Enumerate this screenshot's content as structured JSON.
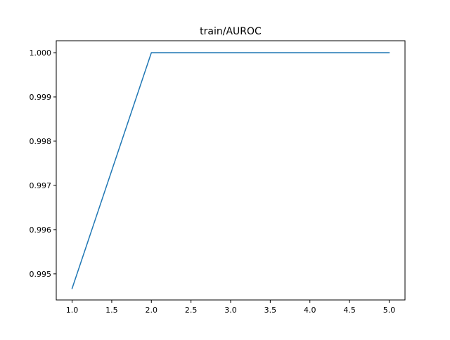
{
  "chart_data": {
    "type": "line",
    "title": "train/AUROC",
    "xlabel": "",
    "ylabel": "",
    "x": [
      1.0,
      2.0,
      3.0,
      4.0,
      5.0
    ],
    "series": [
      {
        "values": [
          0.99467,
          1.0,
          1.0,
          1.0,
          1.0
        ],
        "color": "#1f77b4"
      }
    ],
    "xlim": [
      0.8,
      5.2
    ],
    "ylim": [
      0.99441,
      1.00027
    ],
    "xticks": [
      1.0,
      1.5,
      2.0,
      2.5,
      3.0,
      3.5,
      4.0,
      4.5,
      5.0
    ],
    "xtick_labels": [
      "1.0",
      "1.5",
      "2.0",
      "2.5",
      "3.0",
      "3.5",
      "4.0",
      "4.5",
      "5.0"
    ],
    "yticks": [
      0.995,
      0.996,
      0.997,
      0.998,
      0.999,
      1.0
    ],
    "ytick_labels": [
      "0.995",
      "0.996",
      "0.997",
      "0.998",
      "0.999",
      "1.000"
    ],
    "grid": false,
    "legend": false
  }
}
